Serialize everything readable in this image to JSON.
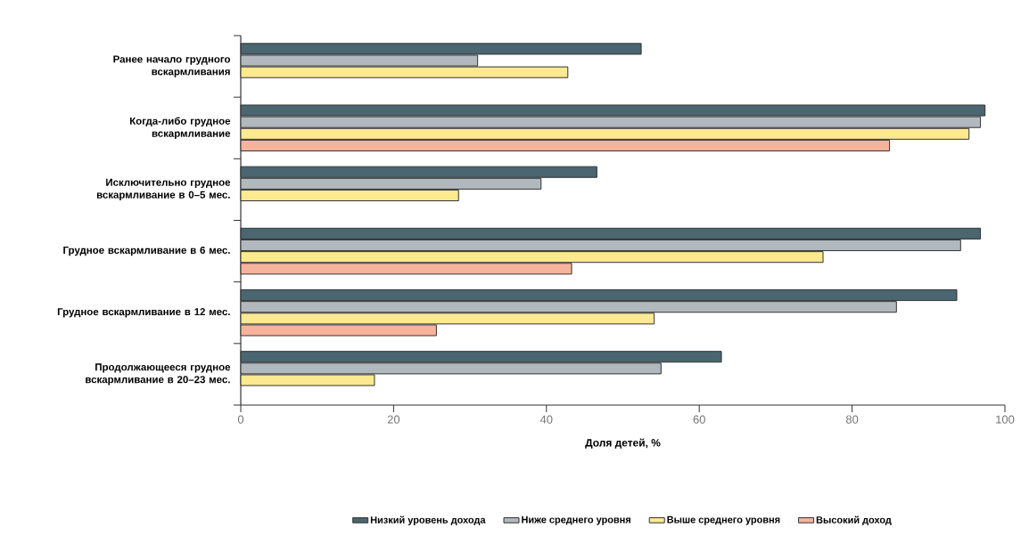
{
  "chart_data": {
    "type": "bar",
    "orientation": "horizontal",
    "categories": [
      "Ранее начало грудного вскармливания",
      "Когда-либо грудное вскармливание",
      "Исключительно грудное вскармливание в 0–5 мес.",
      "Грудное вскармливание в 6 мес.",
      "Грудное вскармливание в 12 мес.",
      "Продолжающееся грудное вскармливание в 20–23 мес."
    ],
    "series": [
      {
        "name": "Низкий уровень дохода",
        "color": "#4a6670",
        "values": [
          52.4,
          97.4,
          46.6,
          96.8,
          93.7,
          62.9
        ]
      },
      {
        "name": "Ниже среднего уровня",
        "color": "#b1b9bf",
        "values": [
          31,
          96.8,
          39.3,
          94.2,
          85.8,
          55
        ]
      },
      {
        "name": "Выше среднего уровня",
        "color": "#fde990",
        "values": [
          42.8,
          95.3,
          28.5,
          76.2,
          54.1,
          17.5
        ]
      },
      {
        "name": "Высокий доход",
        "color": "#f7b49c",
        "values": [
          null,
          84.9,
          null,
          43.3,
          25.6,
          null
        ]
      }
    ],
    "xlim": [
      0,
      100
    ],
    "xticks": [
      0,
      20,
      40,
      60,
      80,
      100
    ],
    "xlabel": "Доля детей, %",
    "legend": "bottom"
  }
}
